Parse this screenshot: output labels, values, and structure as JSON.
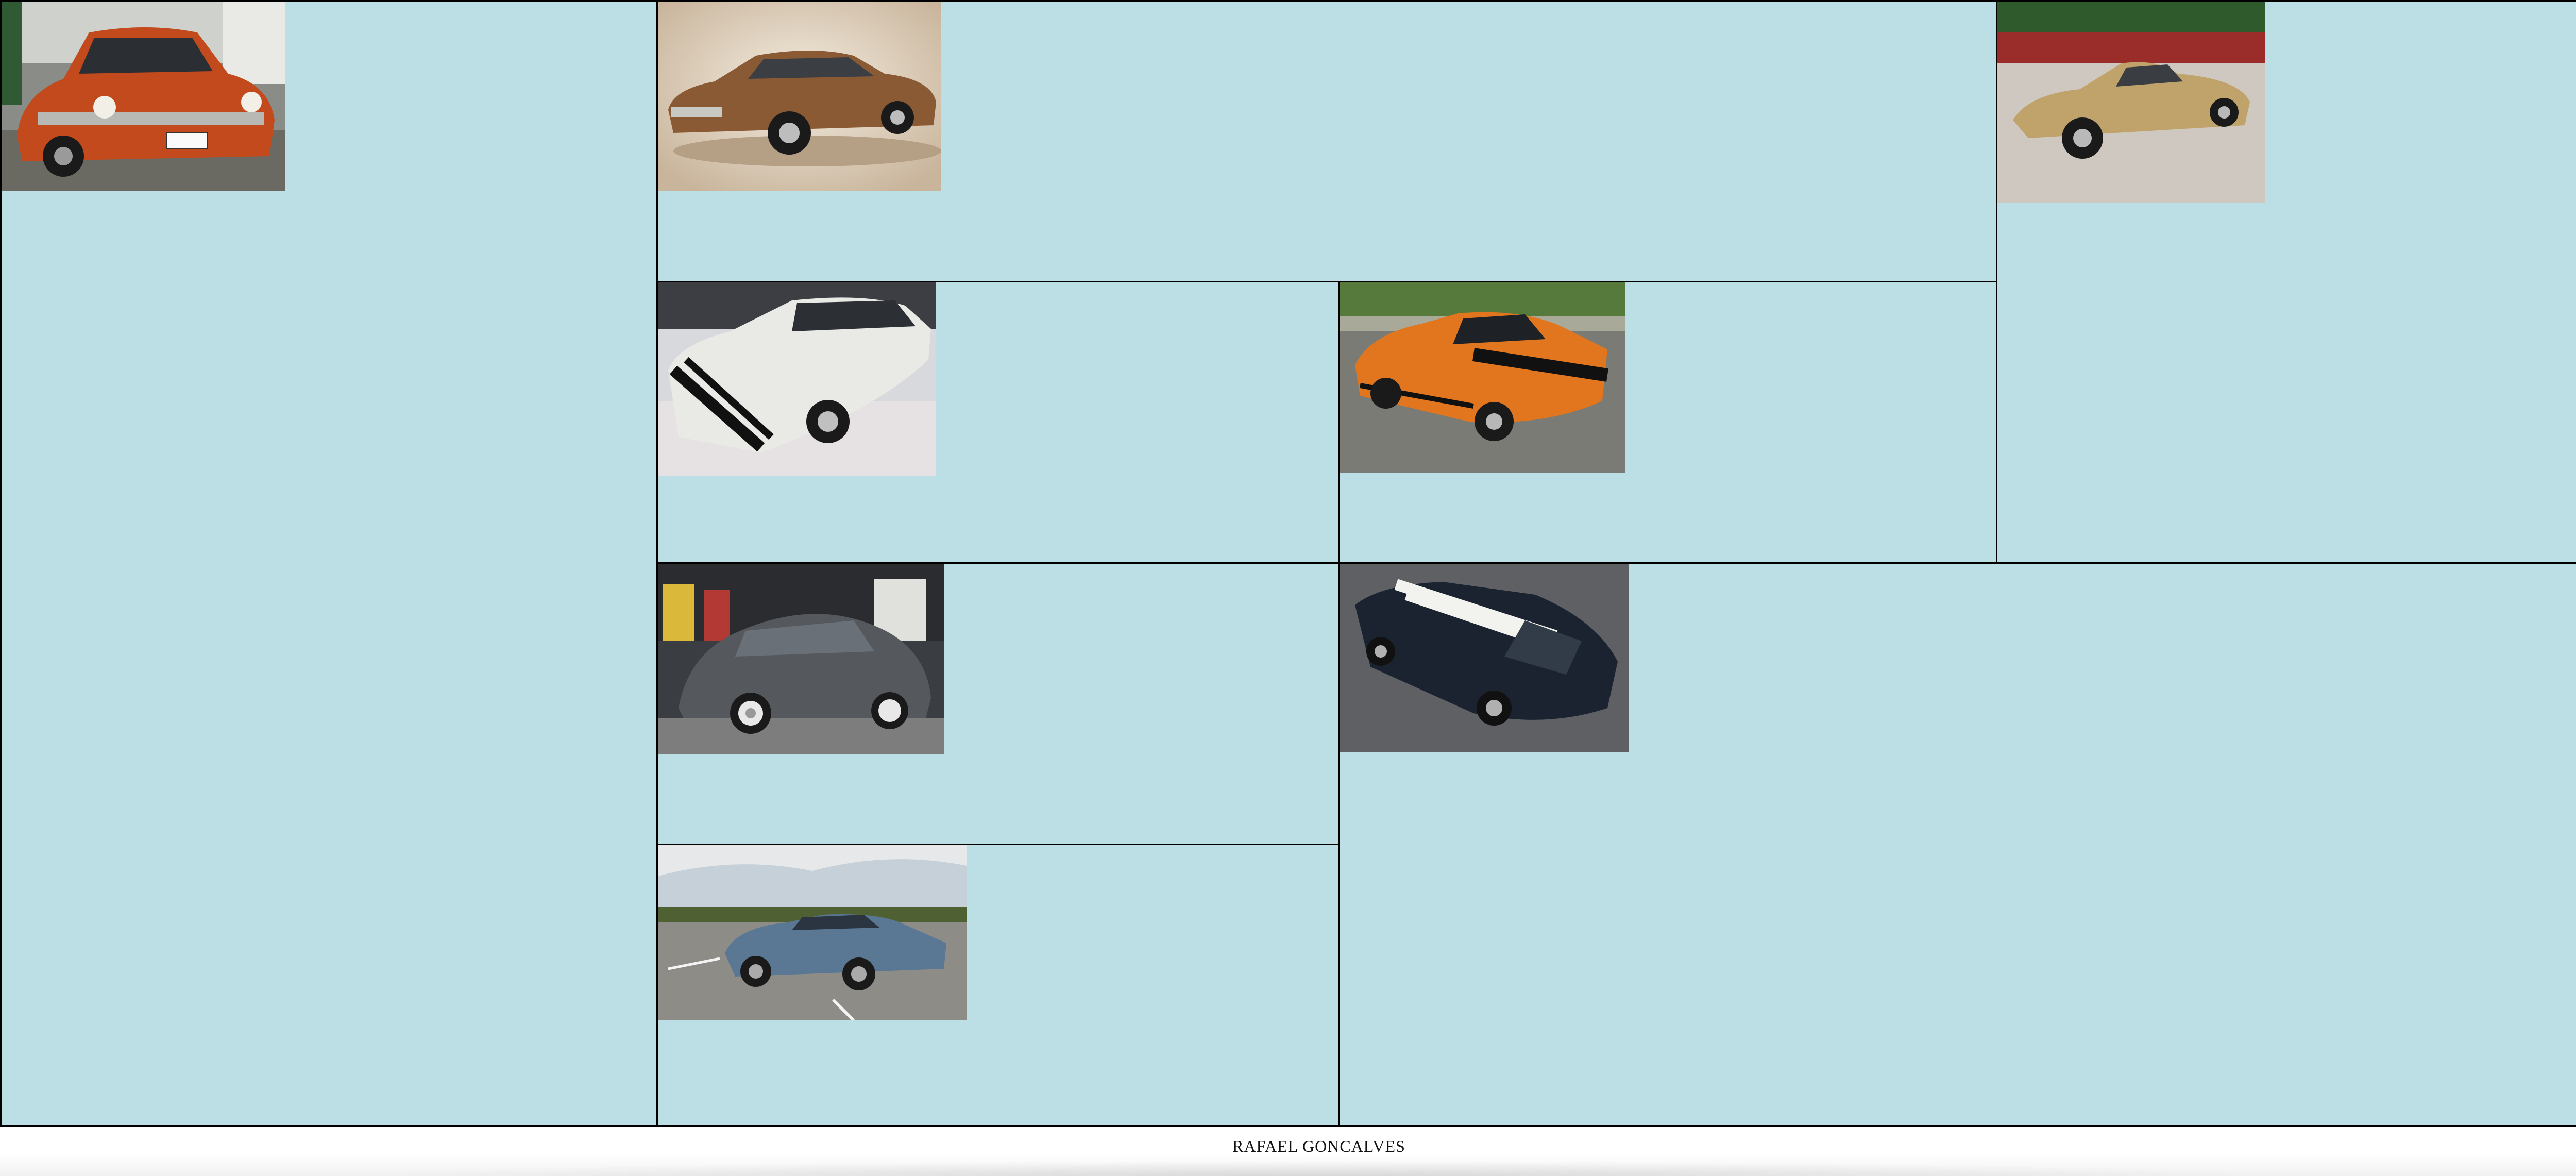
{
  "footer": {
    "author": "RAFAEL GONCALVES"
  },
  "colors": {
    "cell_background": "#bcdfe5",
    "border": "#000000",
    "footer_background": "#ffffff"
  },
  "tiles": [
    {
      "id": "opala-orange-street",
      "car_color": "#c24a1c"
    },
    {
      "id": "opala-brown-studio",
      "car_color": "#8a5a35"
    },
    {
      "id": "gold-coupe-driveway",
      "car_color": "#bfa36b"
    },
    {
      "id": "camaro-white",
      "car_color": "#e9e9e6"
    },
    {
      "id": "opala-orange-black-stripe",
      "car_color": "#e2761e"
    },
    {
      "id": "beetle-grey",
      "car_color": "#55595e"
    },
    {
      "id": "opala-black-white-stripes",
      "car_color": "#1b2330"
    },
    {
      "id": "opala-blue-road",
      "car_color": "#5a7894"
    }
  ]
}
